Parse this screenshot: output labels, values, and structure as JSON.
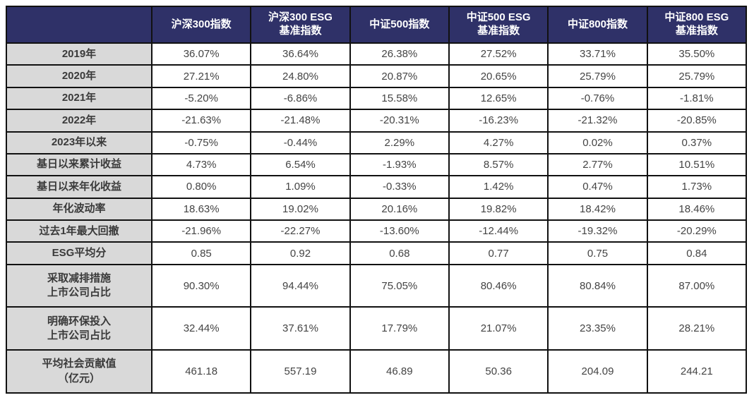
{
  "colors": {
    "header_bg": "#2f3168",
    "header_text": "#ffffff",
    "row_label_bg": "#d9d9d9",
    "cell_bg": "#ffffff",
    "cell_text": "#444444",
    "border": "#111111"
  },
  "chart_data": {
    "type": "table",
    "title": "",
    "corner_label": "",
    "columns": [
      "沪深300指数",
      "沪深300 ESG\n基准指数",
      "中证500指数",
      "中证500 ESG\n基准指数",
      "中证800指数",
      "中证800 ESG\n基准指数"
    ],
    "rows": [
      {
        "label": "2019年",
        "values": [
          "36.07%",
          "36.64%",
          "26.38%",
          "27.52%",
          "33.71%",
          "35.50%"
        ]
      },
      {
        "label": "2020年",
        "values": [
          "27.21%",
          "24.80%",
          "20.87%",
          "20.65%",
          "25.79%",
          "25.79%"
        ]
      },
      {
        "label": "2021年",
        "values": [
          "-5.20%",
          "-6.86%",
          "15.58%",
          "12.65%",
          "-0.76%",
          "-1.81%"
        ]
      },
      {
        "label": "2022年",
        "values": [
          "-21.63%",
          "-21.48%",
          "-20.31%",
          "-16.23%",
          "-21.32%",
          "-20.85%"
        ]
      },
      {
        "label": "2023年以来",
        "values": [
          "-0.75%",
          "-0.44%",
          "2.29%",
          "4.27%",
          "0.02%",
          "0.37%"
        ]
      },
      {
        "label": "基日以来累计收益",
        "values": [
          "4.73%",
          "6.54%",
          "-1.93%",
          "8.57%",
          "2.77%",
          "10.51%"
        ]
      },
      {
        "label": "基日以来年化收益",
        "values": [
          "0.80%",
          "1.09%",
          "-0.33%",
          "1.42%",
          "0.47%",
          "1.73%"
        ]
      },
      {
        "label": "年化波动率",
        "values": [
          "18.63%",
          "19.02%",
          "20.16%",
          "19.82%",
          "18.42%",
          "18.46%"
        ]
      },
      {
        "label": "过去1年最大回撤",
        "values": [
          "-21.96%",
          "-22.27%",
          "-13.60%",
          "-12.44%",
          "-19.32%",
          "-20.29%"
        ]
      },
      {
        "label": "ESG平均分",
        "values": [
          "0.85",
          "0.92",
          "0.68",
          "0.77",
          "0.75",
          "0.84"
        ]
      },
      {
        "label": "采取减排措施\n上市公司占比",
        "values": [
          "90.30%",
          "94.44%",
          "75.05%",
          "80.46%",
          "80.84%",
          "87.00%"
        ]
      },
      {
        "label": "明确环保投入\n上市公司占比",
        "values": [
          "32.44%",
          "37.61%",
          "17.79%",
          "21.07%",
          "23.35%",
          "28.21%"
        ]
      },
      {
        "label": "平均社会贡献值\n（亿元）",
        "values": [
          "461.18",
          "557.19",
          "46.89",
          "50.36",
          "204.09",
          "244.21"
        ]
      }
    ]
  }
}
